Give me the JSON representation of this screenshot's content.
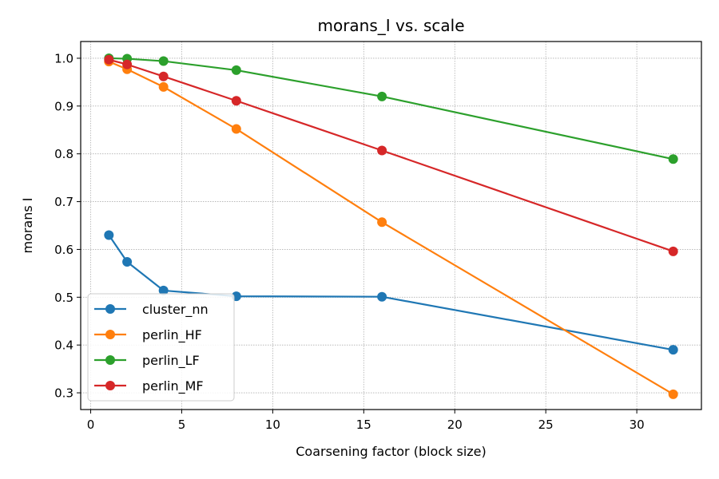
{
  "chart_data": {
    "type": "line",
    "title": "morans_I vs. scale",
    "xlabel": "Coarsening factor (block size)",
    "ylabel": "morans I",
    "xlim": [
      -0.55,
      33.55
    ],
    "ylim": [
      0.265,
      1.035
    ],
    "xticks": [
      0,
      5,
      10,
      15,
      20,
      25,
      30
    ],
    "xtick_labels": [
      "0",
      "5",
      "10",
      "15",
      "20",
      "25",
      "30"
    ],
    "yticks": [
      0.3,
      0.4,
      0.5,
      0.6,
      0.7,
      0.8,
      0.9,
      1.0
    ],
    "ytick_labels": [
      "0.3",
      "0.4",
      "0.5",
      "0.6",
      "0.7",
      "0.8",
      "0.9",
      "1.0"
    ],
    "grid": true,
    "legend_position": "bottom-left",
    "x": [
      1,
      2,
      4,
      8,
      16,
      32
    ],
    "series": [
      {
        "name": "cluster_nn",
        "color": "#1f77b4",
        "values": [
          0.63,
          0.574,
          0.514,
          0.502,
          0.501,
          0.39
        ]
      },
      {
        "name": "perlin_HF",
        "color": "#ff7f0e",
        "values": [
          0.993,
          0.977,
          0.94,
          0.852,
          0.657,
          0.297
        ]
      },
      {
        "name": "perlin_LF",
        "color": "#2ca02c",
        "values": [
          1.0,
          0.999,
          0.994,
          0.975,
          0.92,
          0.789
        ]
      },
      {
        "name": "perlin_MF",
        "color": "#d62728",
        "values": [
          0.997,
          0.987,
          0.962,
          0.911,
          0.807,
          0.596
        ]
      }
    ]
  }
}
